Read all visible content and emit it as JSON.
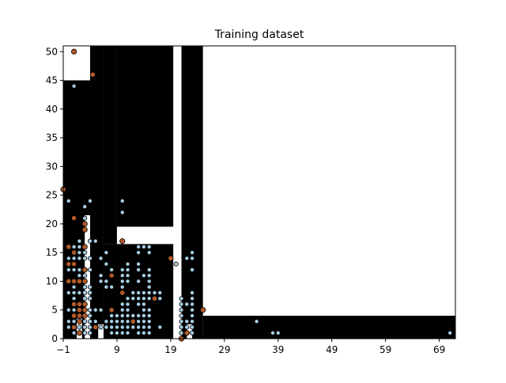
{
  "chart_data": {
    "type": "scatter",
    "title": "Training dataset",
    "xlabel": "",
    "ylabel": "",
    "xlim": [
      -1,
      72
    ],
    "ylim": [
      0,
      51
    ],
    "x_ticks": [
      -1,
      9,
      19,
      29,
      39,
      49,
      59,
      69
    ],
    "y_ticks": [
      0,
      5,
      10,
      15,
      20,
      25,
      30,
      35,
      40,
      45,
      50
    ],
    "x_tick_labels": [
      "−1",
      "9",
      "19",
      "29",
      "39",
      "49",
      "59",
      "69"
    ],
    "y_tick_labels": [
      "0",
      "5",
      "10",
      "15",
      "20",
      "25",
      "30",
      "35",
      "40",
      "45",
      "50"
    ],
    "grid": false,
    "legend": "none",
    "background_regions": {
      "description": "decision regions: black and white",
      "black_color": "#000000",
      "white_color": "#ffffff",
      "black": [
        [
          -1,
          4,
          0,
          45
        ],
        [
          4,
          6.5,
          0,
          51
        ],
        [
          6.5,
          19.5,
          0,
          16.5
        ],
        [
          6.5,
          9,
          16.5,
          51
        ],
        [
          9,
          19.5,
          19.5,
          51
        ],
        [
          21,
          25,
          0,
          51
        ],
        [
          25,
          72,
          0,
          4
        ]
      ],
      "white": [
        [
          1.5,
          2.5,
          0,
          3.5
        ],
        [
          3,
          4,
          0,
          21.5
        ],
        [
          5.5,
          6.5,
          0,
          2.5
        ],
        [
          9,
          19.5,
          16.5,
          19.5
        ],
        [
          19.5,
          21,
          0,
          51
        ],
        [
          22,
          23,
          0,
          2.5
        ]
      ]
    },
    "series": [
      {
        "color": "#a6cee3",
        "edge": "#000000",
        "points": [
          [
            1,
            44
          ],
          [
            1,
            16
          ],
          [
            1,
            14
          ],
          [
            1,
            12
          ],
          [
            1,
            10
          ],
          [
            1,
            9
          ],
          [
            1,
            8
          ],
          [
            1,
            7
          ],
          [
            1,
            5
          ],
          [
            1,
            3
          ],
          [
            1,
            2
          ],
          [
            1,
            1
          ],
          [
            0,
            24
          ],
          [
            0,
            14
          ],
          [
            0,
            12
          ],
          [
            0,
            10
          ],
          [
            0,
            8
          ],
          [
            0,
            5
          ],
          [
            0,
            3
          ],
          [
            0,
            2
          ],
          [
            2,
            17
          ],
          [
            2,
            16
          ],
          [
            2,
            15
          ],
          [
            2,
            14
          ],
          [
            2,
            12
          ],
          [
            2,
            11
          ],
          [
            2,
            10
          ],
          [
            2,
            8
          ],
          [
            2,
            6
          ],
          [
            2,
            5
          ],
          [
            2,
            4
          ],
          [
            2,
            2
          ],
          [
            2,
            1
          ],
          [
            3,
            23
          ],
          [
            3,
            21
          ],
          [
            3,
            19
          ],
          [
            3,
            15
          ],
          [
            3,
            14
          ],
          [
            3,
            11
          ],
          [
            3,
            9
          ],
          [
            3,
            8
          ],
          [
            3,
            7
          ],
          [
            3,
            6
          ],
          [
            3,
            4
          ],
          [
            3,
            3
          ],
          [
            3,
            2
          ],
          [
            3,
            1
          ],
          [
            4,
            24
          ],
          [
            4,
            17
          ],
          [
            4,
            14
          ],
          [
            4,
            12
          ],
          [
            4,
            9
          ],
          [
            4,
            8
          ],
          [
            4,
            7
          ],
          [
            4,
            5
          ],
          [
            4,
            4
          ],
          [
            4,
            3
          ],
          [
            4,
            2
          ],
          [
            4,
            1
          ],
          [
            5,
            17
          ],
          [
            5,
            5
          ],
          [
            5,
            3
          ],
          [
            6,
            14
          ],
          [
            6,
            11
          ],
          [
            6,
            10
          ],
          [
            6,
            5
          ],
          [
            6,
            2
          ],
          [
            7,
            15
          ],
          [
            7,
            13
          ],
          [
            7,
            10
          ],
          [
            7,
            9
          ],
          [
            7,
            3
          ],
          [
            7,
            2
          ],
          [
            8,
            12
          ],
          [
            8,
            9
          ],
          [
            8,
            4
          ],
          [
            8,
            3
          ],
          [
            8,
            2
          ],
          [
            8,
            1
          ],
          [
            9,
            4
          ],
          [
            9,
            3
          ],
          [
            9,
            2
          ],
          [
            9,
            1
          ],
          [
            10,
            24
          ],
          [
            10,
            22
          ],
          [
            10,
            12
          ],
          [
            10,
            11
          ],
          [
            10,
            10
          ],
          [
            10,
            9
          ],
          [
            10,
            6
          ],
          [
            10,
            5
          ],
          [
            10,
            4
          ],
          [
            10,
            3
          ],
          [
            10,
            2
          ],
          [
            10,
            1
          ],
          [
            11,
            13
          ],
          [
            11,
            12
          ],
          [
            11,
            11
          ],
          [
            11,
            10
          ],
          [
            11,
            7
          ],
          [
            11,
            6
          ],
          [
            11,
            5
          ],
          [
            11,
            4
          ],
          [
            11,
            3
          ],
          [
            11,
            2
          ],
          [
            11,
            1
          ],
          [
            12,
            8
          ],
          [
            12,
            7
          ],
          [
            12,
            4
          ],
          [
            12,
            3
          ],
          [
            12,
            2
          ],
          [
            13,
            16
          ],
          [
            13,
            15
          ],
          [
            13,
            13
          ],
          [
            13,
            12
          ],
          [
            13,
            10
          ],
          [
            13,
            8
          ],
          [
            13,
            7
          ],
          [
            13,
            6
          ],
          [
            13,
            4
          ],
          [
            13,
            3
          ],
          [
            13,
            2
          ],
          [
            13,
            1
          ],
          [
            14,
            16
          ],
          [
            14,
            11
          ],
          [
            14,
            8
          ],
          [
            14,
            7
          ],
          [
            14,
            6
          ],
          [
            14,
            5
          ],
          [
            14,
            4
          ],
          [
            14,
            3
          ],
          [
            14,
            2
          ],
          [
            14,
            1
          ],
          [
            15,
            16
          ],
          [
            15,
            15
          ],
          [
            15,
            12
          ],
          [
            15,
            11
          ],
          [
            15,
            10
          ],
          [
            15,
            9
          ],
          [
            15,
            8
          ],
          [
            15,
            7
          ],
          [
            15,
            5
          ],
          [
            15,
            4
          ],
          [
            15,
            3
          ],
          [
            15,
            2
          ],
          [
            15,
            1
          ],
          [
            16,
            8
          ],
          [
            17,
            8
          ],
          [
            17,
            7
          ],
          [
            17,
            2
          ],
          [
            20,
            13
          ],
          [
            21,
            7
          ],
          [
            21,
            6
          ],
          [
            21,
            5
          ],
          [
            21,
            4
          ],
          [
            21,
            3
          ],
          [
            21,
            2
          ],
          [
            21,
            1
          ],
          [
            22,
            14
          ],
          [
            22,
            6
          ],
          [
            22,
            3
          ],
          [
            22,
            2
          ],
          [
            23,
            15
          ],
          [
            23,
            14
          ],
          [
            23,
            12
          ],
          [
            23,
            8
          ],
          [
            23,
            7
          ],
          [
            23,
            6
          ],
          [
            23,
            5
          ],
          [
            23,
            4
          ],
          [
            23,
            3
          ],
          [
            23,
            2
          ],
          [
            23,
            1
          ],
          [
            35,
            3
          ],
          [
            38,
            1
          ],
          [
            39,
            1
          ],
          [
            71,
            1
          ]
        ]
      },
      {
        "color": "#b15928",
        "edge": "#000000",
        "points": [
          [
            1,
            50
          ],
          [
            4.5,
            46
          ],
          [
            -1,
            26
          ],
          [
            1,
            21
          ],
          [
            0,
            16
          ],
          [
            1,
            15
          ],
          [
            0,
            13
          ],
          [
            1,
            13
          ],
          [
            0,
            10
          ],
          [
            1,
            10
          ],
          [
            2,
            10
          ],
          [
            1,
            6
          ],
          [
            2,
            6
          ],
          [
            3,
            6
          ],
          [
            2,
            5
          ],
          [
            1,
            4
          ],
          [
            2,
            4
          ],
          [
            2,
            3
          ],
          [
            1,
            2
          ],
          [
            2,
            1
          ],
          [
            3,
            20
          ],
          [
            3,
            19
          ],
          [
            3,
            16
          ],
          [
            3,
            12
          ],
          [
            3,
            10
          ],
          [
            3,
            5
          ],
          [
            3,
            4
          ],
          [
            5,
            2
          ],
          [
            8,
            11
          ],
          [
            8,
            5
          ],
          [
            10,
            17
          ],
          [
            10,
            8
          ],
          [
            12,
            3
          ],
          [
            16,
            7
          ],
          [
            19,
            14
          ],
          [
            21,
            0
          ],
          [
            22,
            1
          ],
          [
            25,
            5
          ]
        ]
      }
    ]
  }
}
